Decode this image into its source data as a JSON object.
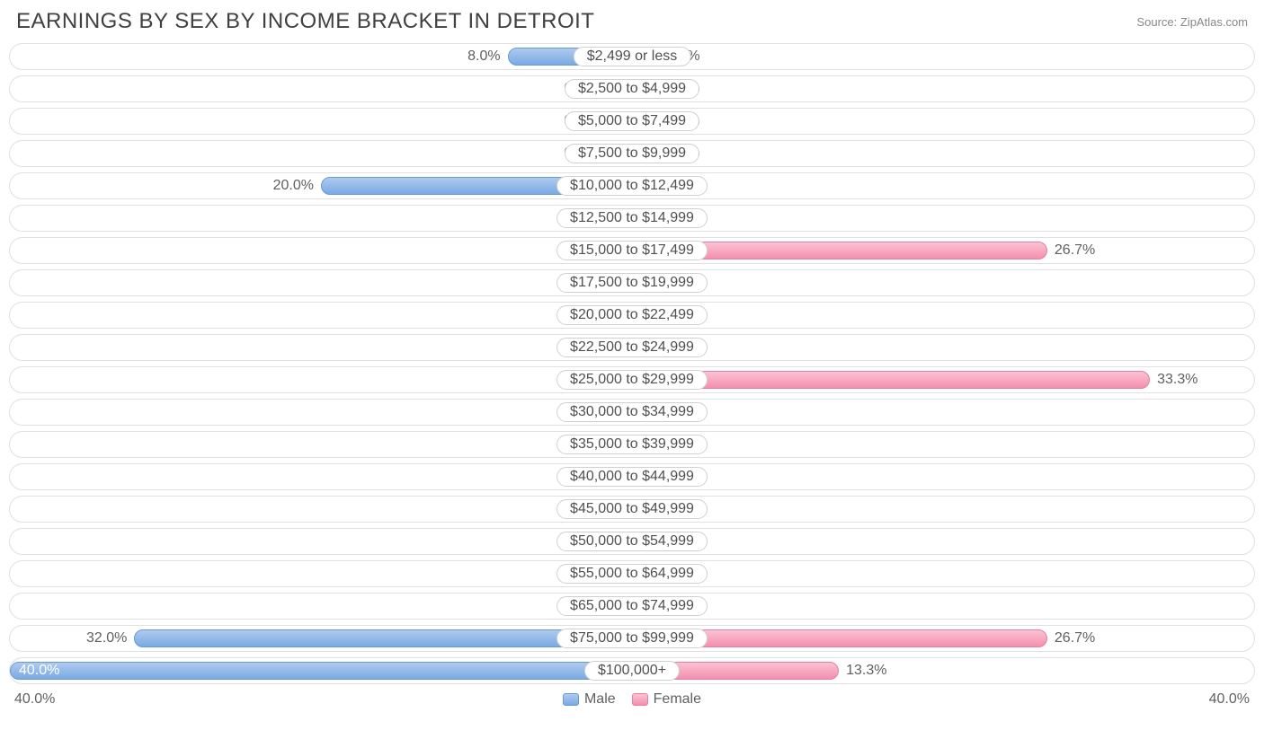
{
  "title": "EARNINGS BY SEX BY INCOME BRACKET IN DETROIT",
  "source": "Source: ZipAtlas.com",
  "axis_max": 40.0,
  "axis_label_left": "40.0%",
  "axis_label_right": "40.0%",
  "min_bar_pct": 4.5,
  "colors": {
    "male_top": "#aecaf0",
    "male_bottom": "#7aaae2",
    "male_border": "#6a9ad2",
    "female_top": "#fcc2d2",
    "female_bottom": "#f48fb1",
    "female_border": "#e57f9f",
    "row_border": "#e0e0e0",
    "text": "#606060",
    "title_text": "#404040",
    "source_text": "#888888",
    "background": "#ffffff"
  },
  "legend": {
    "male": "Male",
    "female": "Female"
  },
  "rows": [
    {
      "label": "$2,499 or less",
      "male": 8.0,
      "female": 0.0
    },
    {
      "label": "$2,500 to $4,999",
      "male": 0.0,
      "female": 0.0
    },
    {
      "label": "$5,000 to $7,499",
      "male": 0.0,
      "female": 0.0
    },
    {
      "label": "$7,500 to $9,999",
      "male": 0.0,
      "female": 0.0
    },
    {
      "label": "$10,000 to $12,499",
      "male": 20.0,
      "female": 0.0
    },
    {
      "label": "$12,500 to $14,999",
      "male": 0.0,
      "female": 0.0
    },
    {
      "label": "$15,000 to $17,499",
      "male": 0.0,
      "female": 26.7
    },
    {
      "label": "$17,500 to $19,999",
      "male": 0.0,
      "female": 0.0
    },
    {
      "label": "$20,000 to $22,499",
      "male": 0.0,
      "female": 0.0
    },
    {
      "label": "$22,500 to $24,999",
      "male": 0.0,
      "female": 0.0
    },
    {
      "label": "$25,000 to $29,999",
      "male": 0.0,
      "female": 33.3
    },
    {
      "label": "$30,000 to $34,999",
      "male": 0.0,
      "female": 0.0
    },
    {
      "label": "$35,000 to $39,999",
      "male": 0.0,
      "female": 0.0
    },
    {
      "label": "$40,000 to $44,999",
      "male": 0.0,
      "female": 0.0
    },
    {
      "label": "$45,000 to $49,999",
      "male": 0.0,
      "female": 0.0
    },
    {
      "label": "$50,000 to $54,999",
      "male": 0.0,
      "female": 0.0
    },
    {
      "label": "$55,000 to $64,999",
      "male": 0.0,
      "female": 0.0
    },
    {
      "label": "$65,000 to $74,999",
      "male": 0.0,
      "female": 0.0
    },
    {
      "label": "$75,000 to $99,999",
      "male": 32.0,
      "female": 26.7
    },
    {
      "label": "$100,000+",
      "male": 40.0,
      "female": 13.3
    }
  ]
}
